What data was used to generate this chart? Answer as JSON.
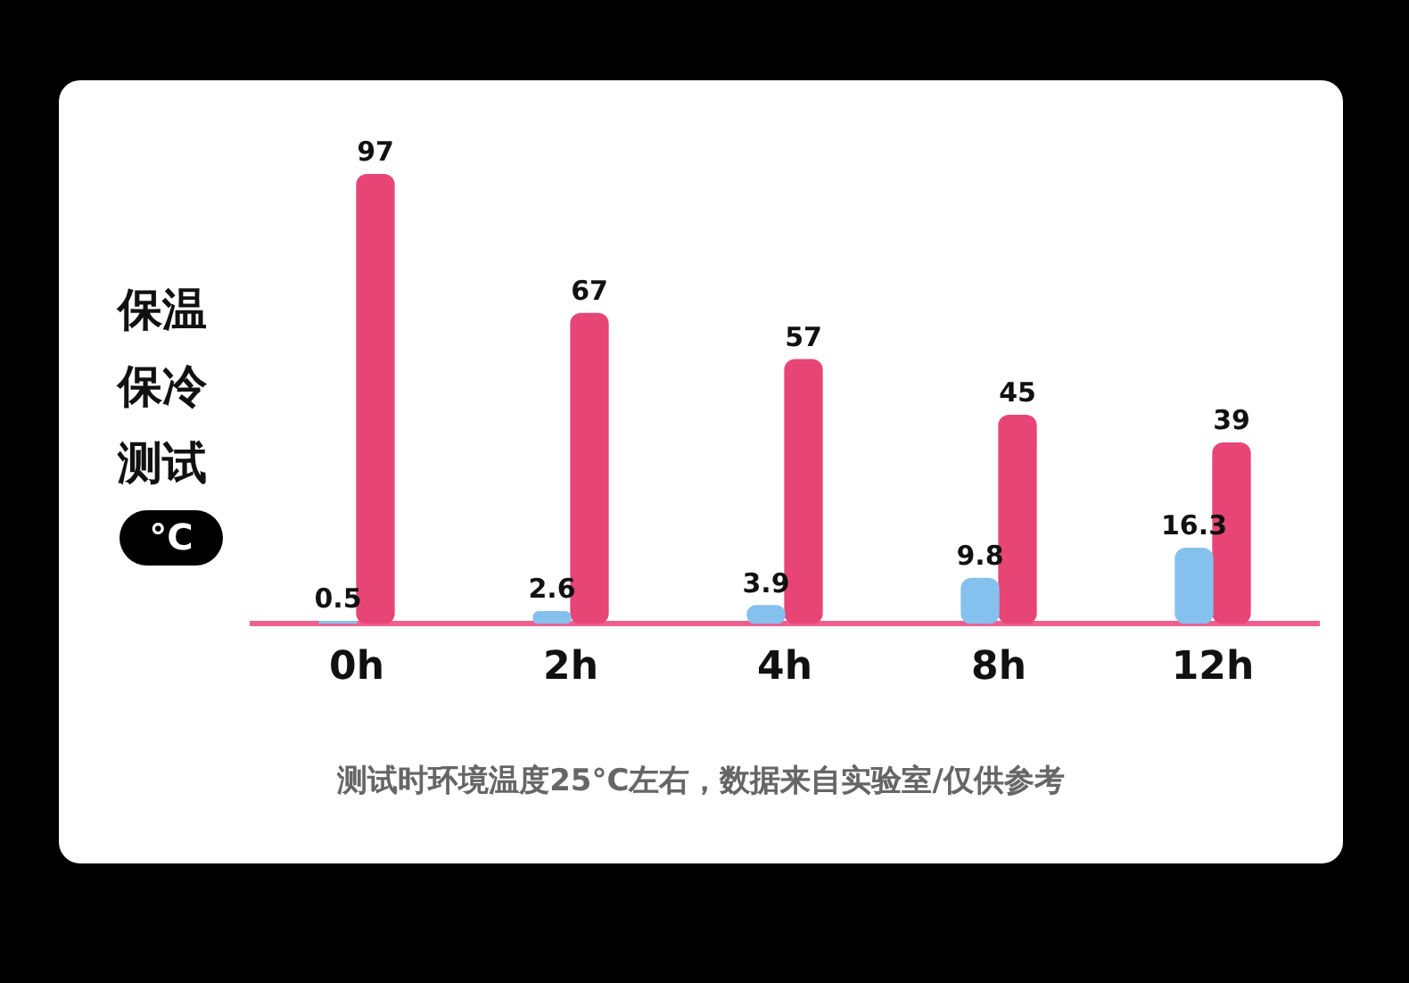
{
  "chart_data": {
    "type": "bar",
    "title": "保温保冷测试",
    "ylabel": "°C",
    "categories": [
      "0h",
      "2h",
      "4h",
      "8h",
      "12h"
    ],
    "series": [
      {
        "color": "#85c1ef",
        "values": [
          0.5,
          2.6,
          3.9,
          9.8,
          16.3
        ]
      },
      {
        "color": "#e84577",
        "values": [
          97,
          67,
          57,
          45,
          39
        ]
      }
    ],
    "data_labels": true,
    "grid": false,
    "legend": false,
    "tick_labels": "x",
    "annotations": [
      "测试时环境温度25°C左右，数据来自实验室/仅供参考"
    ]
  }
}
